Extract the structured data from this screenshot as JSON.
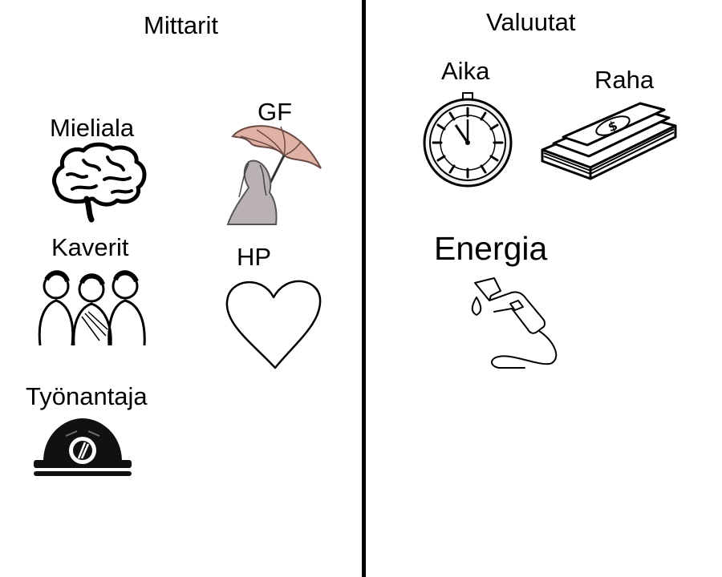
{
  "left_panel": {
    "title": "Mittarit",
    "items": {
      "mood": {
        "label": "Mieliala",
        "icon": "brain-icon"
      },
      "girlfriend": {
        "label": "GF",
        "icon": "woman-umbrella-icon"
      },
      "friends": {
        "label": "Kaverit",
        "icon": "friends-group-icon"
      },
      "health": {
        "label": "HP",
        "icon": "heart-icon"
      },
      "employer": {
        "label": "Työnantaja",
        "icon": "hard-hat-icon"
      }
    }
  },
  "right_panel": {
    "title": "Valuutat",
    "items": {
      "time": {
        "label": "Aika",
        "icon": "clock-icon"
      },
      "money": {
        "label": "Raha",
        "icon": "money-stack-icon"
      },
      "energy": {
        "label": "Energia",
        "icon": "fuel-nozzle-icon"
      }
    }
  },
  "colors": {
    "line": "#000000",
    "background": "#ffffff",
    "umbrella": "#d9a89a"
  }
}
